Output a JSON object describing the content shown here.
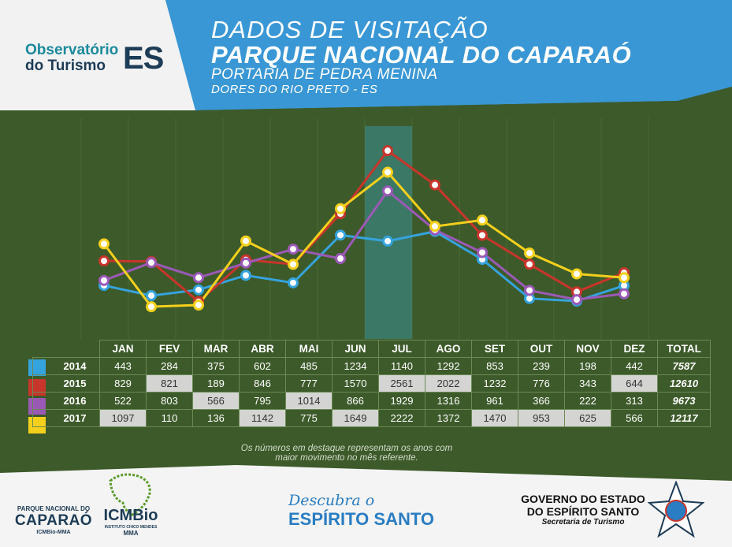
{
  "header": {
    "title_line1": "DADOS DE VISITAÇÃO",
    "title_line2": "PARQUE NACIONAL DO CAPARAÓ",
    "title_line3": "PORTARIA DE PEDRA MENINA",
    "title_line4": "DORES DO RIO PRETO - ES",
    "logo_line1": "Observatório",
    "logo_line2a": "do",
    "logo_line2b": "Turismo",
    "logo_es": "ES"
  },
  "colors": {
    "bg": "#3d5a2a",
    "header_blue": "#3a97d5",
    "s2014": "#35a3dd",
    "s2015": "#c8352b",
    "s2016": "#9b59b6",
    "s2017": "#f4d01c"
  },
  "chart_data": {
    "type": "line",
    "categories": [
      "JAN",
      "FEV",
      "MAR",
      "ABR",
      "MAI",
      "JUN",
      "JUL",
      "AGO",
      "SET",
      "OUT",
      "NOV",
      "DEZ"
    ],
    "total_label": "TOTAL",
    "highlight_category": "JUL",
    "series": [
      {
        "name": "2014",
        "values": [
          443,
          284,
          375,
          602,
          485,
          1234,
          1140,
          1292,
          853,
          239,
          198,
          442
        ],
        "total": "7587"
      },
      {
        "name": "2015",
        "values": [
          829,
          821,
          189,
          846,
          777,
          1570,
          2561,
          2022,
          1232,
          776,
          343,
          644
        ],
        "total": "12610"
      },
      {
        "name": "2016",
        "values": [
          522,
          803,
          566,
          795,
          1014,
          866,
          1929,
          1316,
          961,
          366,
          222,
          313
        ],
        "total": "9673"
      },
      {
        "name": "2017",
        "values": [
          1097,
          110,
          136,
          1142,
          775,
          1649,
          2222,
          1372,
          1470,
          953,
          625,
          566
        ],
        "total": "12117"
      }
    ],
    "ylim": [
      0,
      2700
    ]
  },
  "table": {
    "highlight": [
      [],
      [
        1,
        6,
        7,
        11
      ],
      [
        2,
        4
      ],
      [
        0,
        3,
        5,
        8,
        9,
        10
      ]
    ]
  },
  "note": {
    "line1": "Os números em destaque representam os anos com",
    "line2": "maior movimento no mês referente."
  },
  "footer": {
    "parque_line1": "PARQUE NACIONAL DO",
    "parque_line2": "CAPARAÓ",
    "parque_line3": "ICMBio-MMA",
    "icmbio": "ICMBio",
    "icmbio_sub": "INSTITUTO CHICO MENDES",
    "icmbio_mma": "MMA",
    "descubra": "Descubra o",
    "espirito": "ESPÍRITO SANTO",
    "gov_line1": "GOVERNO DO ESTADO",
    "gov_line2": "DO ESPÍRITO SANTO",
    "gov_line3": "Secretaria de Turismo"
  }
}
